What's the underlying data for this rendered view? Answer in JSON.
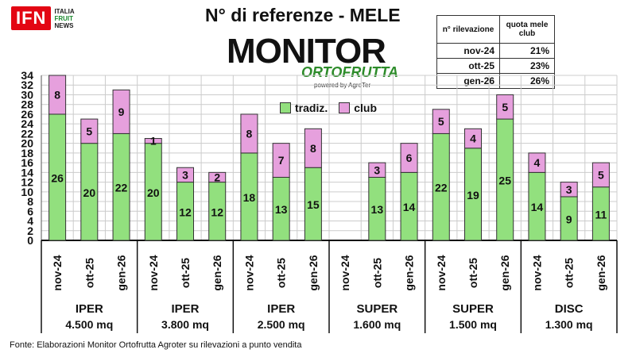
{
  "logo": {
    "mark": "IFN",
    "line1": "ITALIA",
    "line2": "FRUIT",
    "line3": "NEWS"
  },
  "header": {
    "title": "N° di referenze - MELE"
  },
  "brand": {
    "main": "MONITOR",
    "sub": "ORTOFRUTTA",
    "powered": "powered by AgroTer"
  },
  "legend": {
    "tradiz": "tradiz.",
    "club": "club"
  },
  "table": {
    "header_left": "n° rilevazione",
    "header_right": "quota mele club",
    "rows": [
      {
        "period": "nov-24",
        "quota": "21%"
      },
      {
        "period": "ott-25",
        "quota": "23%"
      },
      {
        "period": "gen-26",
        "quota": "26%"
      }
    ]
  },
  "source": "Fonte: Elaborazioni Monitor Ortofrutta Agroter su rilevazioni a punto vendita",
  "colors": {
    "tradiz": "#92e07e",
    "club": "#e6a0dd",
    "grid": "#cccccc"
  },
  "chart_data": {
    "type": "bar",
    "stacked": true,
    "ylim": [
      0,
      34
    ],
    "yticks": [
      0,
      2,
      4,
      6,
      8,
      10,
      12,
      14,
      16,
      18,
      20,
      22,
      24,
      26,
      28,
      30,
      32,
      34
    ],
    "grid": true,
    "groups": [
      {
        "name": "IPER",
        "size": "4.500 mq",
        "categories": [
          "nov-24",
          "ott-25",
          "gen-26"
        ],
        "tradiz": [
          26,
          20,
          22
        ],
        "club": [
          8,
          5,
          9
        ]
      },
      {
        "name": "IPER",
        "size": "3.800 mq",
        "categories": [
          "nov-24",
          "ott-25",
          "gen-26"
        ],
        "tradiz": [
          20,
          12,
          12
        ],
        "club": [
          1,
          3,
          2
        ]
      },
      {
        "name": "IPER",
        "size": "2.500 mq",
        "categories": [
          "nov-24",
          "ott-25",
          "gen-26"
        ],
        "tradiz": [
          18,
          13,
          15
        ],
        "club": [
          8,
          7,
          8
        ]
      },
      {
        "name": "SUPER",
        "size": "1.600 mq",
        "categories": [
          "nov-24",
          "ott-25",
          "gen-26"
        ],
        "tradiz": [
          null,
          13,
          14
        ],
        "club": [
          null,
          3,
          6
        ]
      },
      {
        "name": "SUPER",
        "size": "1.500 mq",
        "categories": [
          "nov-24",
          "ott-25",
          "gen-26"
        ],
        "tradiz": [
          22,
          19,
          25
        ],
        "club": [
          5,
          4,
          5
        ]
      },
      {
        "name": "DISC",
        "size": "1.300 mq",
        "categories": [
          "nov-24",
          "ott-25",
          "gen-26"
        ],
        "tradiz": [
          14,
          9,
          11
        ],
        "club": [
          4,
          3,
          5
        ]
      }
    ]
  }
}
